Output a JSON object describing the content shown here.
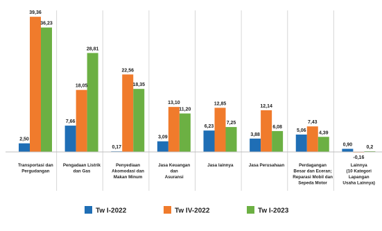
{
  "chart_data": {
    "type": "bar",
    "categories": [
      [
        "Transportasi dan",
        "Pergudangan"
      ],
      [
        "Pengadaan Listrik",
        "dan Gas"
      ],
      [
        "Penyediaan",
        "Akomodasi dan",
        "Makan Minum"
      ],
      [
        "Jasa Keuangan",
        "dan",
        "Asuransi"
      ],
      [
        "Jasa lainnya"
      ],
      [
        "Jasa Perusahaan"
      ],
      [
        "Perdagangan",
        "Besar dan Eceran;",
        "Reparasi Mobil dan",
        "Sepeda Motor"
      ],
      [
        "Lainnya",
        "(10 Kategori",
        "Lapangan",
        "Usaha Lainnya)"
      ]
    ],
    "series": [
      {
        "name": "Tw I-2022",
        "color": "#1f6eb5",
        "values": [
          2.5,
          7.66,
          0.17,
          3.09,
          6.23,
          3.88,
          5.06,
          0.9
        ],
        "labels": [
          "2,50",
          "7,66",
          "0,17",
          "3,09",
          "6,23",
          "3,88",
          "5,06",
          "0,90"
        ]
      },
      {
        "name": "Tw IV-2022",
        "color": "#f07b2c",
        "values": [
          39.36,
          18.05,
          22.56,
          13.1,
          12.85,
          12.14,
          7.43,
          -0.16
        ],
        "labels": [
          "39,36",
          "18,05",
          "22,56",
          "13,10",
          "12,85",
          "12,14",
          "7,43",
          "-0,16"
        ]
      },
      {
        "name": "Tw I-2023",
        "color": "#6cb043",
        "values": [
          36.23,
          28.81,
          18.35,
          11.2,
          7.25,
          6.08,
          4.39,
          0.2
        ],
        "labels": [
          "36,23",
          "28,81",
          "18,35",
          "11,20",
          "7,25",
          "6,08",
          "4,39",
          "0,2"
        ]
      }
    ],
    "ylim": [
      -1,
      40
    ],
    "grid": false,
    "legend_position": "bottom"
  }
}
